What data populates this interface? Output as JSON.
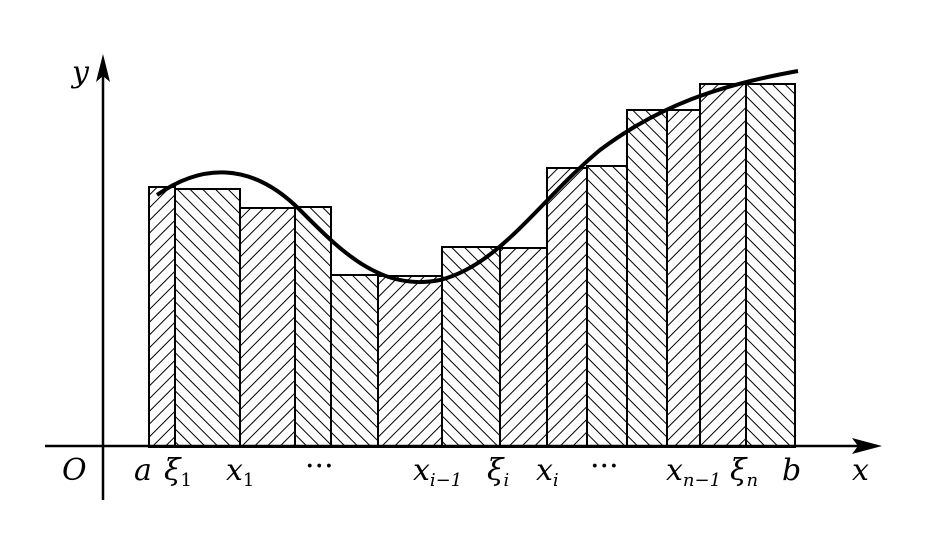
{
  "diagram": {
    "axes": {
      "origin_label": "O",
      "x_label": "x",
      "y_label": "y"
    },
    "tick_labels": [
      {
        "id": "a",
        "main": "a",
        "sub": ""
      },
      {
        "id": "xi1",
        "main": "ξ",
        "sub": "1"
      },
      {
        "id": "x1",
        "main": "x",
        "sub": "1"
      },
      {
        "id": "dots1",
        "main": "···",
        "sub": ""
      },
      {
        "id": "xim1",
        "main": "x",
        "sub": "i−1"
      },
      {
        "id": "xii",
        "main": "ξ",
        "sub": "i"
      },
      {
        "id": "xi",
        "main": "x",
        "sub": "i"
      },
      {
        "id": "dots2",
        "main": "···",
        "sub": ""
      },
      {
        "id": "xnm1",
        "main": "x",
        "sub": "n−1"
      },
      {
        "id": "xin",
        "main": "ξ",
        "sub": "n"
      },
      {
        "id": "b",
        "main": "b",
        "sub": ""
      }
    ],
    "colors": {
      "ink": "#000000",
      "background": "#ffffff"
    }
  }
}
